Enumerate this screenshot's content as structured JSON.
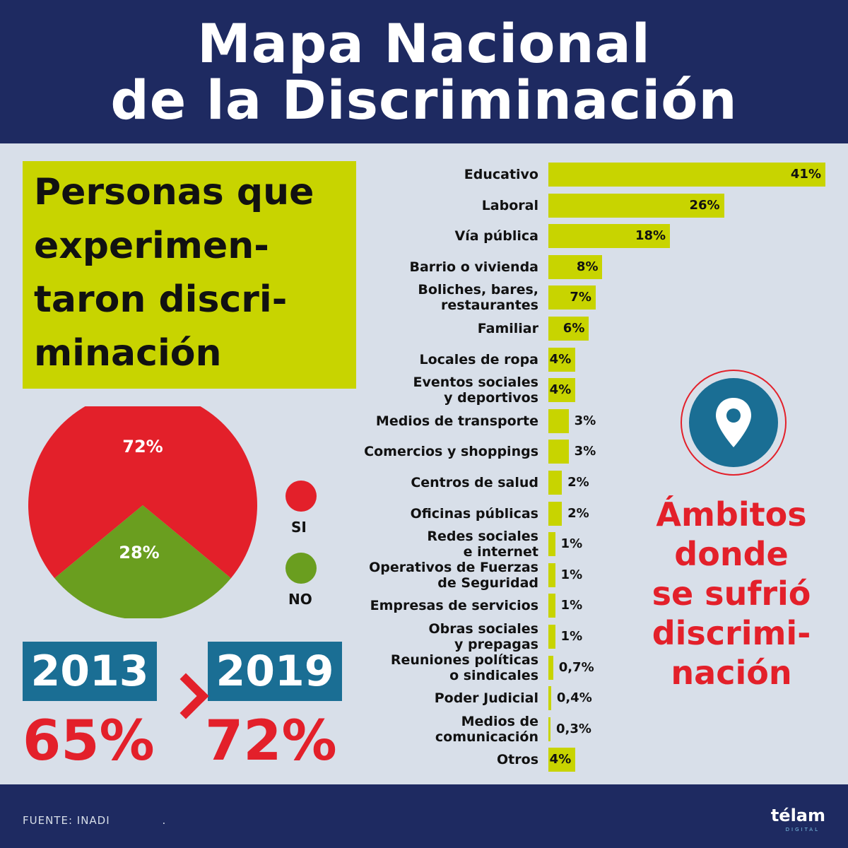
{
  "header": {
    "title_line1": "Mapa Nacional",
    "title_line2": "de la Discriminación"
  },
  "subtitle": {
    "lines": [
      "Personas que",
      "experimen-",
      "taron discri-",
      "minación"
    ]
  },
  "pie_legend": {
    "yes": "SI",
    "no": "NO"
  },
  "comparison": {
    "year_a": "2013",
    "value_a": "65%",
    "year_b": "2019",
    "value_b": "72%"
  },
  "ambitos_title_lines": [
    "Ámbitos",
    "donde",
    "se sufrió",
    "discrimi-",
    "nación"
  ],
  "footer": {
    "source": "FUENTE: INADI",
    "dot": ".",
    "logo": "télam",
    "logo_sub": "DIGITAL"
  },
  "colors": {
    "navy": "#1e2a61",
    "lime": "#c8d400",
    "red": "#e3202a",
    "green": "#6a9e1f",
    "blue": "#1a6e94"
  },
  "chart_data": [
    {
      "type": "pie",
      "title": "Personas que experimentaron discriminación",
      "categories": [
        "SI",
        "NO"
      ],
      "values": [
        72,
        28
      ],
      "labels": [
        "72%",
        "28%"
      ]
    },
    {
      "type": "bar",
      "orientation": "horizontal",
      "title": "Ámbitos donde se sufrió discriminación",
      "categories": [
        "Educativo",
        "Laboral",
        "Vía pública",
        "Barrio o vivienda",
        "Boliches, bares,\nrestaurantes",
        "Familiar",
        "Locales de ropa",
        "Eventos sociales\ny deportivos",
        "Medios de transporte",
        "Comercios y shoppings",
        "Centros de salud",
        "Oficinas públicas",
        "Redes sociales\ne internet",
        "Operativos de Fuerzas\nde Seguridad",
        "Empresas de servicios",
        "Obras sociales\ny prepagas",
        "Reuniones políticas\no sindicales",
        "Poder Judicial",
        "Medios de\ncomunicación",
        "Otros"
      ],
      "values": [
        41,
        26,
        18,
        8,
        7,
        6,
        4,
        4,
        3,
        3,
        2,
        2,
        1,
        1,
        1,
        1,
        0.7,
        0.4,
        0.3,
        4
      ],
      "labels": [
        "41%",
        "26%",
        "18%",
        "8%",
        "7%",
        "6%",
        "4%",
        "4%",
        "3%",
        "3%",
        "2%",
        "2%",
        "1%",
        "1%",
        "1%",
        "1%",
        "0,7%",
        "0,4%",
        "0,3%",
        "4%"
      ],
      "xlim": [
        0,
        41
      ]
    }
  ]
}
